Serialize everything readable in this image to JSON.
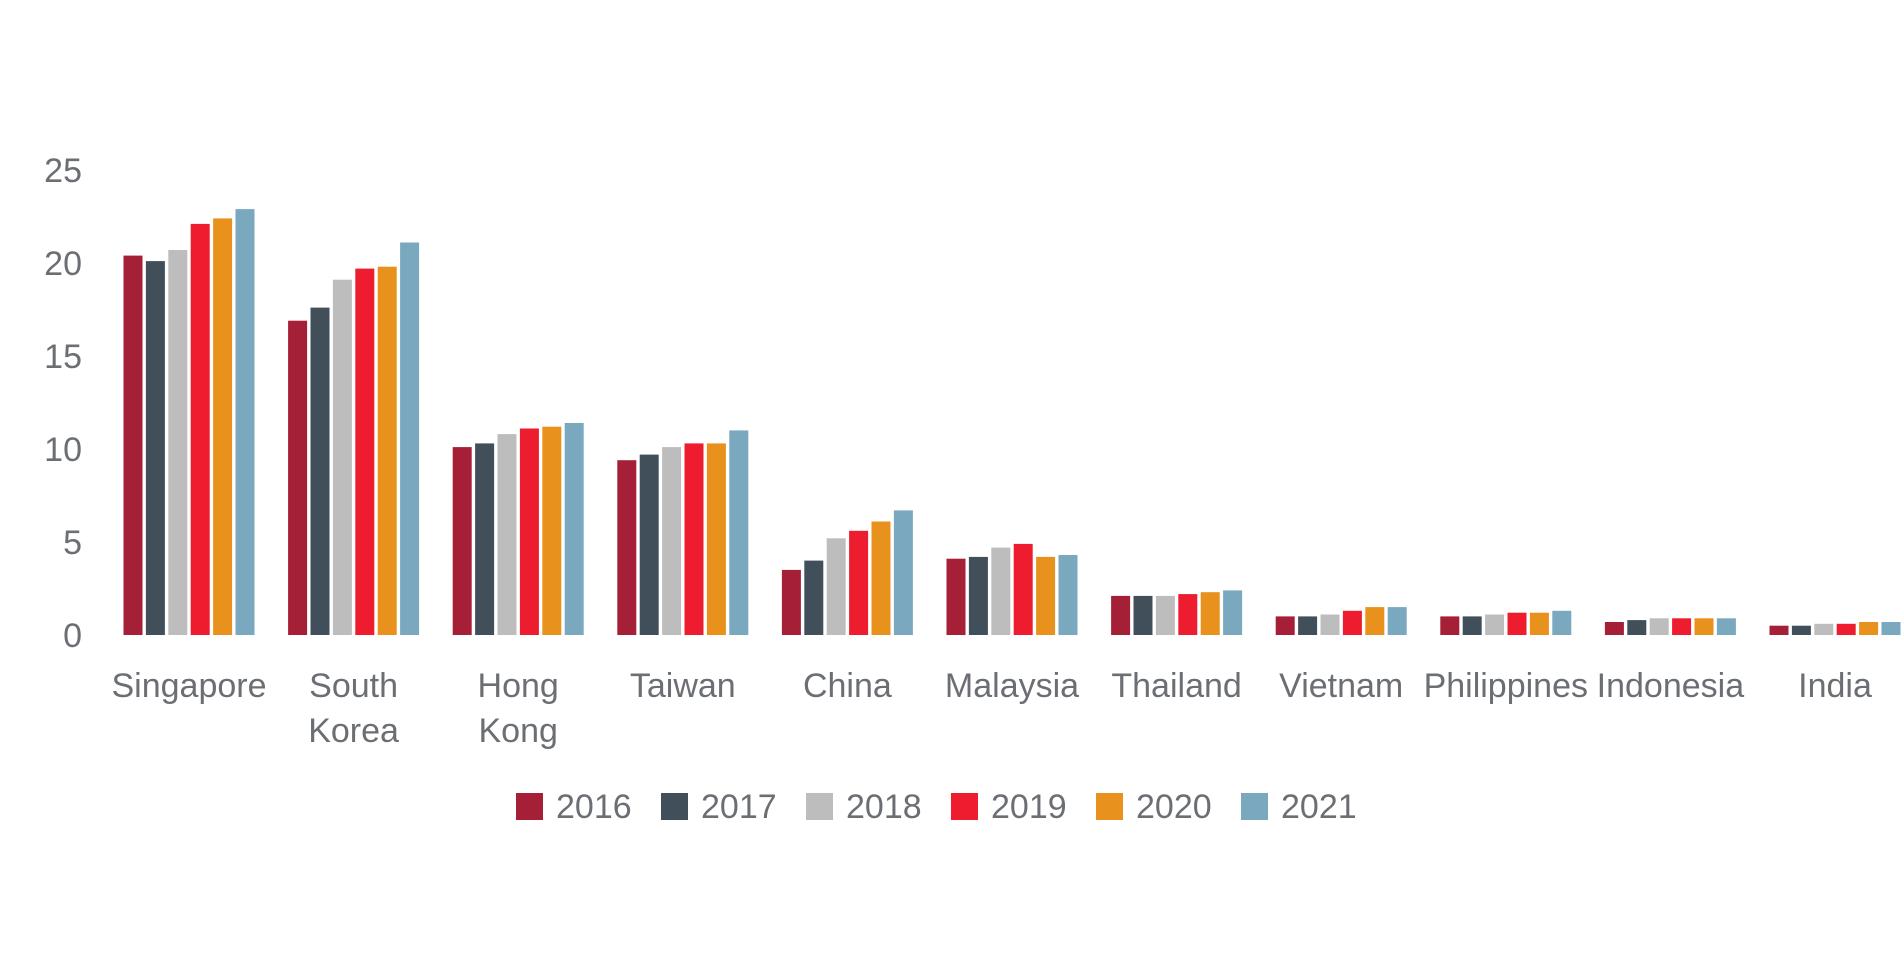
{
  "chart_data": {
    "type": "bar",
    "categories": [
      [
        "Singapore"
      ],
      [
        "South",
        "Korea"
      ],
      [
        "Hong",
        "Kong"
      ],
      [
        "Taiwan"
      ],
      [
        "China"
      ],
      [
        "Malaysia"
      ],
      [
        "Thailand"
      ],
      [
        "Vietnam"
      ],
      [
        "Philippines"
      ],
      [
        "Indonesia"
      ],
      [
        "India"
      ]
    ],
    "series": [
      {
        "name": "2016",
        "color": "#a51f36",
        "values": [
          20.4,
          16.9,
          10.1,
          9.4,
          3.5,
          4.1,
          2.1,
          1.0,
          1.0,
          0.7,
          0.5
        ]
      },
      {
        "name": "2017",
        "color": "#414f5b",
        "values": [
          20.1,
          17.6,
          10.3,
          9.7,
          4.0,
          4.2,
          2.1,
          1.0,
          1.0,
          0.8,
          0.5
        ]
      },
      {
        "name": "2018",
        "color": "#bdbdbd",
        "values": [
          20.7,
          19.1,
          10.8,
          10.1,
          5.2,
          4.7,
          2.1,
          1.1,
          1.1,
          0.9,
          0.6
        ]
      },
      {
        "name": "2019",
        "color": "#ed1c2e",
        "values": [
          22.1,
          19.7,
          11.1,
          10.3,
          5.6,
          4.9,
          2.2,
          1.3,
          1.2,
          0.9,
          0.6
        ]
      },
      {
        "name": "2020",
        "color": "#e8911c",
        "values": [
          22.4,
          19.8,
          11.2,
          10.3,
          6.1,
          4.2,
          2.3,
          1.5,
          1.2,
          0.9,
          0.7
        ]
      },
      {
        "name": "2021",
        "color": "#7aa9bf",
        "values": [
          22.9,
          21.1,
          11.4,
          11.0,
          6.7,
          4.3,
          2.4,
          1.5,
          1.3,
          0.9,
          0.7
        ]
      }
    ],
    "yticks": [
      0,
      5,
      10,
      15,
      20,
      25
    ],
    "ylim": [
      0,
      25
    ],
    "grid": false,
    "legend": "bottom-center",
    "title": "",
    "xlabel": "",
    "ylabel": ""
  }
}
